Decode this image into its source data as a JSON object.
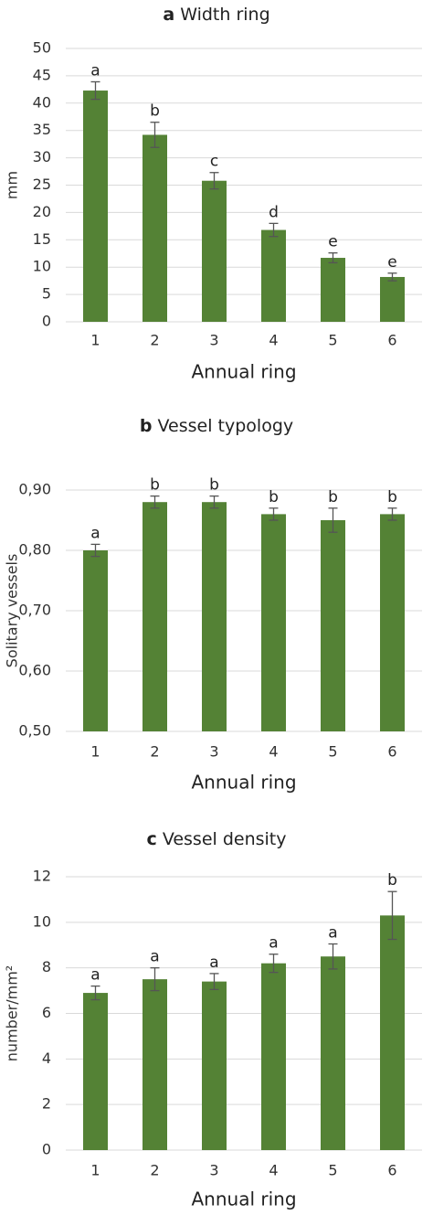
{
  "chart_data": [
    {
      "type": "bar",
      "panel": "a",
      "title": "Width ring",
      "x_label": "Annual ring",
      "y_label": "mm",
      "categories": [
        "1",
        "2",
        "3",
        "4",
        "5",
        "6"
      ],
      "values": [
        42.3,
        34.2,
        25.8,
        16.8,
        11.7,
        8.2
      ],
      "errors": [
        1.6,
        2.3,
        1.5,
        1.2,
        0.9,
        0.7
      ],
      "letters": [
        "a",
        "b",
        "c",
        "d",
        "e",
        "e"
      ],
      "color": "#548235",
      "ylim": [
        0,
        50
      ],
      "yticks": [
        0,
        5,
        10,
        15,
        20,
        25,
        30,
        35,
        40,
        45,
        50
      ],
      "grid": true
    },
    {
      "type": "bar",
      "panel": "b",
      "title": "Vessel typology",
      "x_label": "Annual ring",
      "y_label": "Solitary vessels",
      "categories": [
        "1",
        "2",
        "3",
        "4",
        "5",
        "6"
      ],
      "values": [
        0.8,
        0.88,
        0.88,
        0.86,
        0.85,
        0.86
      ],
      "errors": [
        0.01,
        0.01,
        0.01,
        0.01,
        0.02,
        0.01
      ],
      "letters": [
        "a",
        "b",
        "b",
        "b",
        "b",
        "b"
      ],
      "color": "#548235",
      "ylim": [
        0.5,
        0.9
      ],
      "yticks": [
        {
          "value": 0.5,
          "label": "0,50"
        },
        {
          "value": 0.6,
          "label": "0,60"
        },
        {
          "value": 0.7,
          "label": "0,70"
        },
        {
          "value": 0.8,
          "label": "0,80"
        },
        {
          "value": 0.9,
          "label": "0,90"
        }
      ],
      "grid": true
    },
    {
      "type": "bar",
      "panel": "c",
      "title": "Vessel density",
      "x_label": "Annual ring",
      "y_label": "number/mm²",
      "categories": [
        "1",
        "2",
        "3",
        "4",
        "5",
        "6"
      ],
      "values": [
        6.9,
        7.5,
        7.4,
        8.2,
        8.5,
        10.3
      ],
      "errors": [
        0.3,
        0.5,
        0.35,
        0.4,
        0.55,
        1.05
      ],
      "letters": [
        "a",
        "a",
        "a",
        "a",
        "a",
        "b"
      ],
      "color": "#548235",
      "ylim": [
        0,
        12
      ],
      "yticks": [
        0,
        2,
        4,
        6,
        8,
        10,
        12
      ],
      "grid": true
    }
  ]
}
